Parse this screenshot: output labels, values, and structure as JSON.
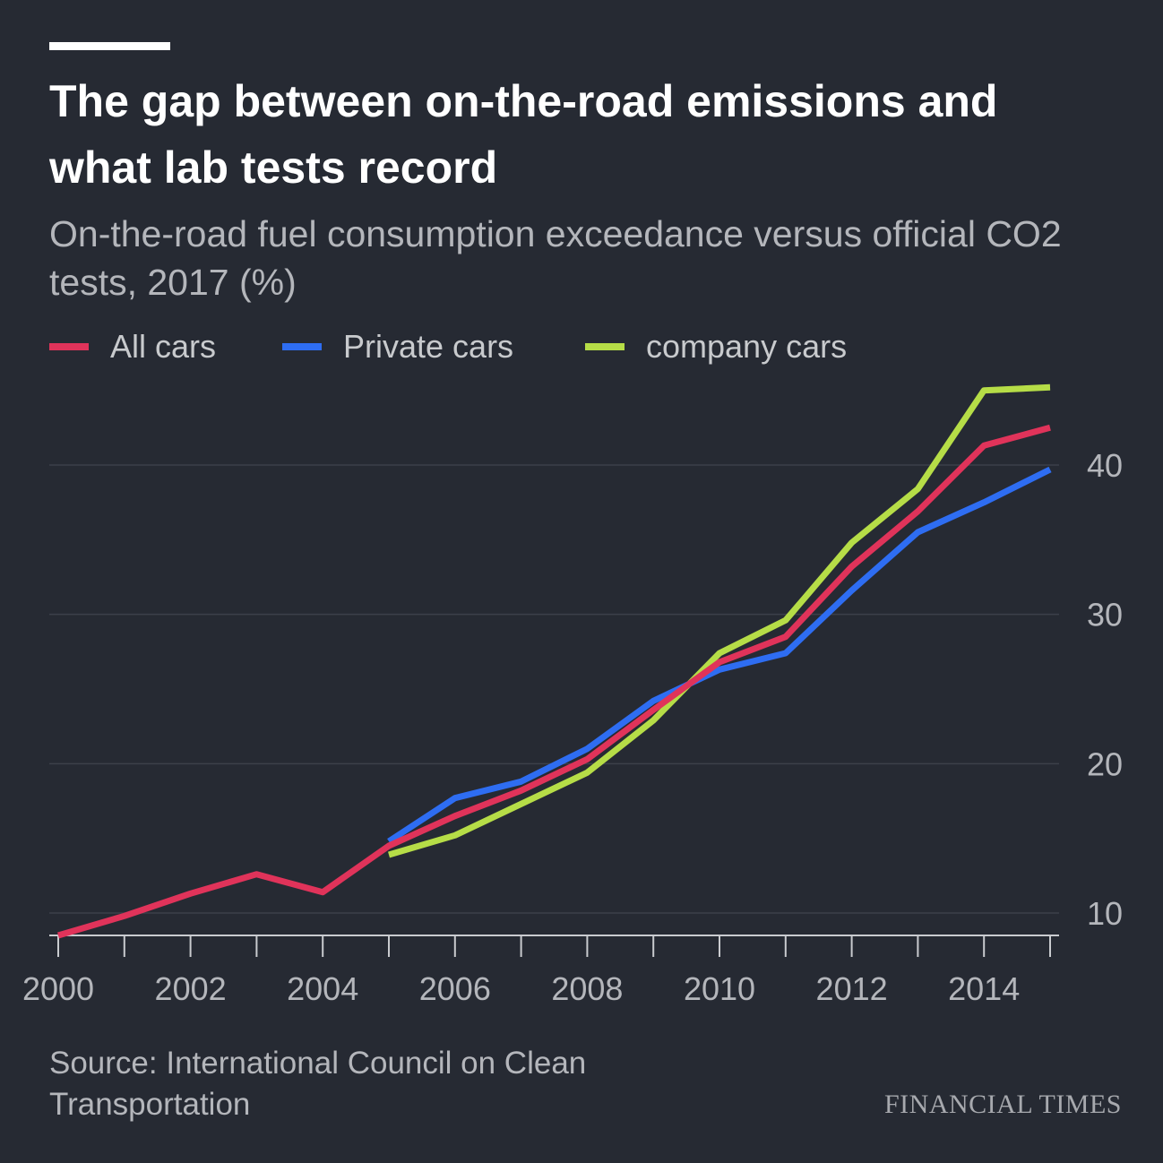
{
  "header": {
    "title": "The gap between on-the-road emissions and what lab tests record",
    "subtitle": "On-the-road fuel consumption exceedance versus official CO2 tests, 2017 (%)"
  },
  "legend": [
    {
      "label": "All cars",
      "color": "#e0335a"
    },
    {
      "label": "Private cars",
      "color": "#2e6df2"
    },
    {
      "label": "company cars",
      "color": "#b6dd47"
    }
  ],
  "chart_data": {
    "type": "line",
    "x": [
      2000,
      2001,
      2002,
      2003,
      2004,
      2005,
      2006,
      2007,
      2008,
      2009,
      2010,
      2011,
      2012,
      2013,
      2014,
      2015
    ],
    "series": [
      {
        "name": "All cars",
        "color": "#e0335a",
        "values": [
          8.5,
          9.8,
          11.3,
          12.6,
          11.4,
          14.5,
          16.5,
          18.2,
          20.3,
          23.6,
          26.8,
          28.5,
          33.2,
          36.9,
          41.3,
          42.5
        ]
      },
      {
        "name": "Private cars",
        "color": "#2e6df2",
        "values": [
          null,
          null,
          null,
          null,
          null,
          14.8,
          17.7,
          18.8,
          21.0,
          24.2,
          26.3,
          27.4,
          31.6,
          35.5,
          37.5,
          39.7
        ]
      },
      {
        "name": "company cars",
        "color": "#b6dd47",
        "values": [
          null,
          null,
          null,
          null,
          null,
          13.9,
          15.2,
          17.3,
          19.4,
          22.9,
          27.4,
          29.6,
          34.8,
          38.4,
          45.0,
          45.2
        ]
      }
    ],
    "xticks": [
      2000,
      2001,
      2002,
      2003,
      2004,
      2005,
      2006,
      2007,
      2008,
      2009,
      2010,
      2011,
      2012,
      2013,
      2014,
      2015
    ],
    "xtick_labels": [
      "2000",
      "2002",
      "2004",
      "2006",
      "2008",
      "2010",
      "2012",
      "2014"
    ],
    "yticks": [
      "10",
      "20",
      "30",
      "40"
    ],
    "ylim": [
      8.5,
      46
    ],
    "xlim": [
      2000,
      2015
    ],
    "grid": true,
    "y_axis_side": "right"
  },
  "footer": {
    "source": "Source: International Council on Clean Transportation",
    "brand": "FINANCIAL TIMES"
  }
}
